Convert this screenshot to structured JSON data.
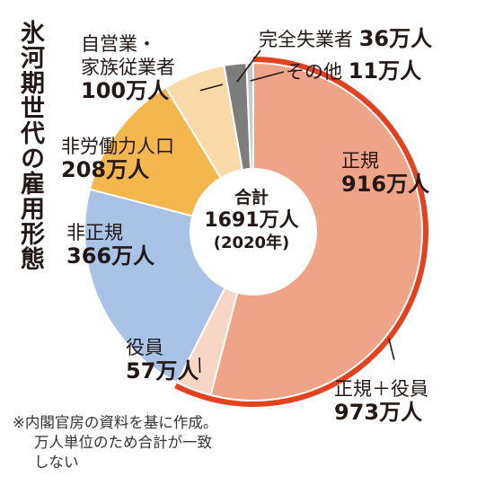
{
  "title": "氷河期世代の雇用形態",
  "chart_data": {
    "type": "pie",
    "variant": "donut",
    "unit": "万人",
    "total": {
      "caption": "合計",
      "value": 1691,
      "value_text": "1691万人",
      "year": "(2020年)"
    },
    "slices": [
      {
        "label": "正規",
        "value": 916,
        "value_text": "916万人",
        "color": "#efa488"
      },
      {
        "label": "役員",
        "value": 57,
        "value_text": "57万人",
        "color": "#f8d6c6"
      },
      {
        "label": "非正規",
        "value": 366,
        "value_text": "366万人",
        "color": "#a8c3e7"
      },
      {
        "label": "非労働力人口",
        "value": 208,
        "value_text": "208万人",
        "color": "#f4b74e"
      },
      {
        "label": "自営業・家族従業者",
        "label_lines": [
          "自営業・",
          "家族従業者"
        ],
        "value": 100,
        "value_text": "100万人",
        "color": "#fbd9a9"
      },
      {
        "label": "完全失業者",
        "value": 36,
        "value_text": "36万人",
        "color": "#7d7d7d"
      },
      {
        "label": "その他",
        "value": 11,
        "value_text": "11万人",
        "color": "#c9c9c9"
      }
    ],
    "outer_arc": {
      "label": "正規＋役員",
      "value": 973,
      "value_text": "973万人",
      "color": "#e2421f"
    }
  },
  "note": {
    "lines": [
      "※内閣官房の資料を基に作成。",
      "万人単位のため合計が一致",
      "しない"
    ]
  }
}
